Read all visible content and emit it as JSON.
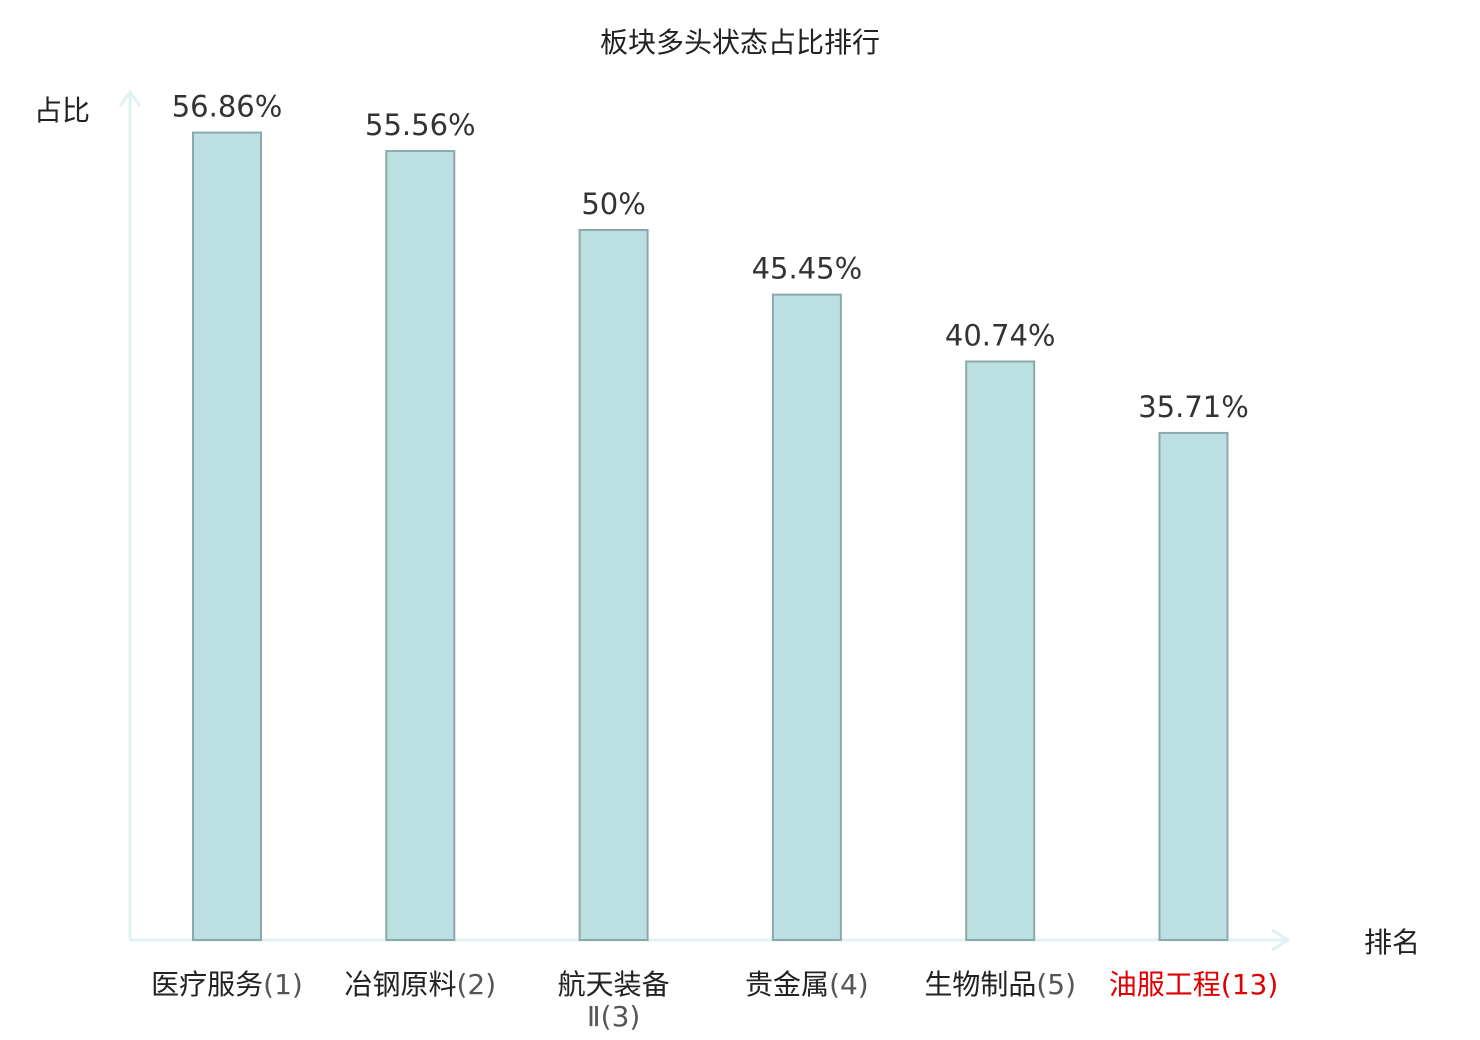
{
  "chart_data": {
    "type": "bar",
    "title": "板块多头状态占比排行",
    "ylabel": "占比",
    "xlabel": "排名",
    "ylim": [
      0,
      60
    ],
    "grid": false,
    "categories": [
      {
        "name": "医疗服务",
        "rank": "(1)"
      },
      {
        "name": "冶钢原料",
        "rank": "(2)"
      },
      {
        "name": "航天装备",
        "name2": "Ⅱ(3)"
      },
      {
        "name": "贵金属",
        "rank": "(4)"
      },
      {
        "name": "生物制品",
        "rank": "(5)"
      },
      {
        "name": "油服工程",
        "rank": "(13)",
        "highlight": true
      }
    ],
    "values": [
      56.86,
      55.56,
      50,
      45.45,
      40.74,
      35.71
    ],
    "value_labels": [
      "56.86%",
      "55.56%",
      "50%",
      "45.45%",
      "40.74%",
      "35.71%"
    ],
    "colors": {
      "bar_fill": "#bce0e2",
      "bar_stroke": "#8aa9ab",
      "axis": "#e0f2f1",
      "text": "#333333",
      "highlight": "#e00000",
      "rank_text": "#555555"
    }
  }
}
